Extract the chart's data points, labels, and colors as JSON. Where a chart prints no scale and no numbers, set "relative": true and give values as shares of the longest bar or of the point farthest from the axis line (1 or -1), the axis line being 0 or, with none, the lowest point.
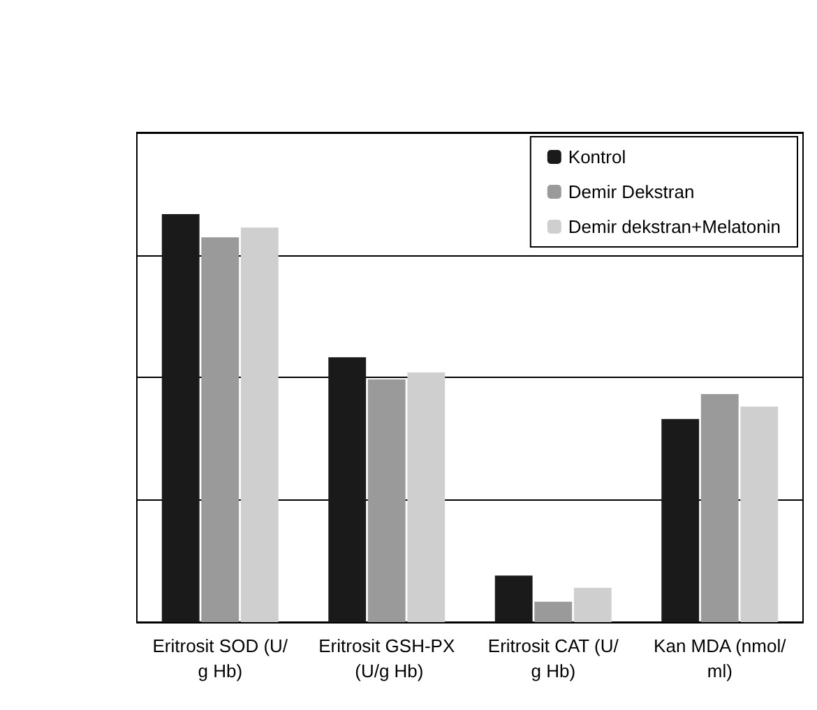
{
  "chart_data": {
    "type": "bar",
    "relative": true,
    "categories": [
      "Eritrosit SOD (U/g Hb)",
      "Eritrosit GSH-PX (U/g Hb)",
      "Eritrosit CAT (U/g Hb)",
      "Kan MDA (nmol/ml)"
    ],
    "series": [
      {
        "name": "Kontrol",
        "color": "#1a1a1a",
        "values": [
          1,
          0.649,
          0.114,
          0.498
        ]
      },
      {
        "name": "Demir Dekstran",
        "color": "#9a9a9a",
        "values": [
          0.943,
          0.595,
          0.05,
          0.559
        ]
      },
      {
        "name": "Demir dekstran+Melatonin",
        "color": "#cfcfcf",
        "values": [
          0.967,
          0.612,
          0.084,
          0.528
        ]
      }
    ],
    "grid": "y",
    "legend": "top right"
  }
}
